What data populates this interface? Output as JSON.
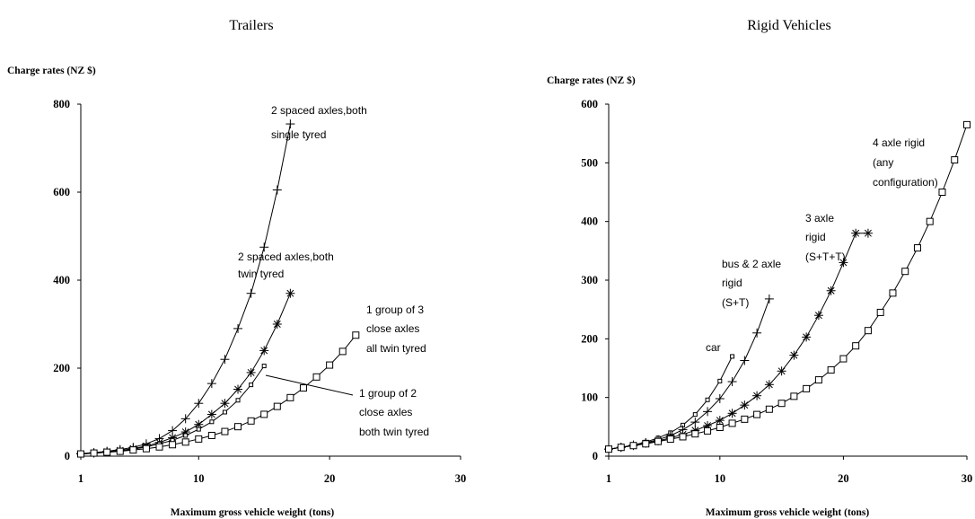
{
  "chart_data": [
    {
      "type": "line",
      "title": "Trailers",
      "ylabel": "Charge rates (NZ $)",
      "xlabel": "Maximum gross vehicle weight (tons)",
      "x_ticks": [
        1,
        10,
        20,
        30
      ],
      "y_ticks": [
        0,
        200,
        400,
        600,
        800
      ],
      "xlim": [
        1,
        30
      ],
      "ylim": [
        0,
        800
      ],
      "series": [
        {
          "marker": "plus",
          "x": [
            1,
            2,
            3,
            4,
            5,
            6,
            7,
            8,
            9,
            10,
            11,
            12,
            13,
            14,
            15,
            16,
            17
          ],
          "y": [
            6,
            8,
            11,
            15,
            20,
            28,
            40,
            58,
            85,
            120,
            165,
            220,
            290,
            370,
            475,
            605,
            755
          ]
        },
        {
          "marker": "asterisk",
          "x": [
            1,
            2,
            3,
            4,
            5,
            6,
            7,
            8,
            9,
            10,
            11,
            12,
            13,
            14,
            15,
            16,
            17
          ],
          "y": [
            5,
            7,
            10,
            13,
            17,
            23,
            31,
            42,
            55,
            72,
            95,
            120,
            152,
            190,
            240,
            300,
            370
          ]
        },
        {
          "marker": "small-square",
          "x": [
            1,
            2,
            3,
            4,
            5,
            6,
            7,
            8,
            9,
            10,
            11,
            12,
            13,
            14,
            15
          ],
          "y": [
            5,
            7,
            9,
            12,
            16,
            21,
            28,
            36,
            47,
            61,
            78,
            100,
            127,
            162,
            205
          ]
        },
        {
          "marker": "square",
          "x": [
            1,
            2,
            3,
            4,
            5,
            6,
            7,
            8,
            9,
            10,
            11,
            12,
            13,
            14,
            15,
            16,
            17,
            18,
            19,
            20,
            21,
            22
          ],
          "y": [
            5,
            7,
            9,
            11,
            14,
            17,
            21,
            26,
            32,
            39,
            47,
            56,
            67,
            80,
            95,
            113,
            133,
            155,
            180,
            207,
            238,
            275
          ]
        }
      ],
      "annotations": [
        {
          "lines": [
            "2 spaced axles,both",
            "single tyred"
          ]
        },
        {
          "lines": [
            "2 spaced axles,both",
            "twin tyred"
          ]
        },
        {
          "lines": [
            "1 group of 3",
            "close axles",
            "all twin tyred"
          ]
        },
        {
          "lines": [
            "1 group of 2",
            "close axles",
            "both twin tyred"
          ]
        }
      ]
    },
    {
      "type": "line",
      "title": "Rigid Vehicles",
      "ylabel": "Charge rates (NZ $)",
      "xlabel": "Maximum gross vehicle weight (tons)",
      "x_ticks": [
        1,
        10,
        20,
        30
      ],
      "y_ticks": [
        0,
        100,
        200,
        300,
        400,
        500,
        600
      ],
      "xlim": [
        1,
        30
      ],
      "ylim": [
        0,
        600
      ],
      "series": [
        {
          "marker": "small-square",
          "x": [
            1,
            2,
            3,
            4,
            5,
            6,
            7,
            8,
            9,
            10,
            11
          ],
          "y": [
            12,
            15,
            19,
            24,
            31,
            40,
            53,
            71,
            96,
            128,
            170
          ]
        },
        {
          "marker": "plus",
          "x": [
            1,
            2,
            3,
            4,
            5,
            6,
            7,
            8,
            9,
            10,
            11,
            12,
            13,
            14
          ],
          "y": [
            12,
            15,
            19,
            23,
            28,
            35,
            45,
            58,
            76,
            98,
            127,
            163,
            210,
            268
          ]
        },
        {
          "marker": "asterisk",
          "x": [
            1,
            2,
            3,
            4,
            5,
            6,
            7,
            8,
            9,
            10,
            11,
            12,
            13,
            14,
            15,
            16,
            17,
            18,
            19,
            20,
            21,
            22
          ],
          "y": [
            12,
            15,
            18,
            22,
            26,
            31,
            37,
            44,
            52,
            61,
            73,
            87,
            103,
            122,
            145,
            172,
            203,
            240,
            282,
            330,
            380,
            380
          ]
        },
        {
          "marker": "square",
          "x": [
            1,
            2,
            3,
            4,
            5,
            6,
            7,
            8,
            9,
            10,
            11,
            12,
            13,
            14,
            15,
            16,
            17,
            18,
            19,
            20,
            21,
            22,
            23,
            24,
            25,
            26,
            27,
            28,
            29,
            30
          ],
          "y": [
            12,
            15,
            18,
            21,
            25,
            29,
            33,
            38,
            43,
            49,
            56,
            63,
            71,
            80,
            90,
            102,
            115,
            130,
            147,
            166,
            188,
            214,
            245,
            278,
            315,
            355,
            400,
            450,
            505,
            565
          ]
        }
      ],
      "annotations": [
        {
          "lines": [
            "4 axle rigid",
            "(any",
            "configuration)"
          ]
        },
        {
          "lines": [
            "3 axle",
            "rigid",
            "(S+T+T)"
          ]
        },
        {
          "lines": [
            "bus & 2 axle",
            "rigid",
            "(S+T)"
          ]
        },
        {
          "lines": [
            "car"
          ]
        }
      ]
    }
  ]
}
